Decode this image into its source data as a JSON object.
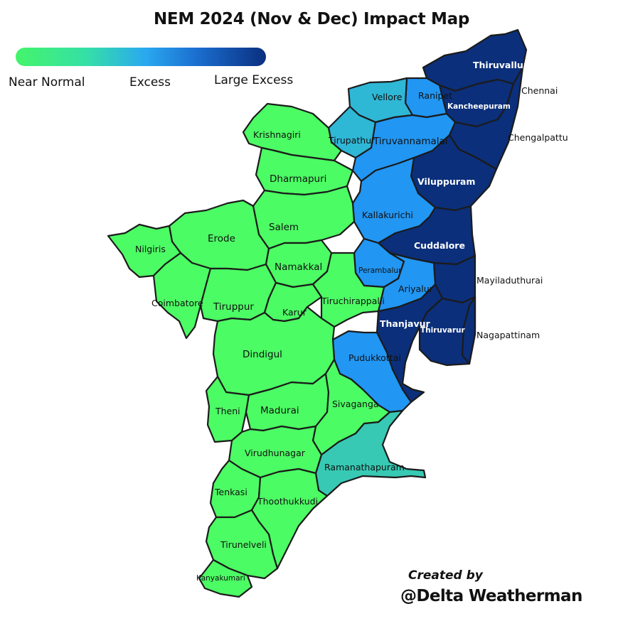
{
  "title": "NEM 2024 (Nov & Dec) Impact Map",
  "legend": {
    "items": [
      {
        "label": "Near Normal",
        "color": "#4cfc64"
      },
      {
        "label": "Excess",
        "color": "#2aa8f0"
      },
      {
        "label": "Large Excess",
        "color": "#0a2f80"
      }
    ]
  },
  "colors": {
    "near_normal": "#4cfc64",
    "near_excess_light": "#2fbfcf",
    "teal": "#37c9b4",
    "excess": "#2196f3",
    "large_excess": "#0b2f7a"
  },
  "districts": {
    "thiruvallur": {
      "name": "Thiruvallur",
      "category": "Large Excess"
    },
    "chennai": {
      "name": "Chennai",
      "category": "Large Excess"
    },
    "kancheepuram": {
      "name": "Kancheepuram",
      "category": "Large Excess"
    },
    "chengalpattu": {
      "name": "Chengalpattu",
      "category": "Large Excess"
    },
    "ranipet": {
      "name": "Ranipet",
      "category": "Excess"
    },
    "vellore": {
      "name": "Vellore",
      "category": "Excess"
    },
    "tirupathur": {
      "name": "Tirupathur",
      "category": "Excess"
    },
    "tiruvannamalai": {
      "name": "Tiruvannamalai",
      "category": "Excess"
    },
    "viluppuram": {
      "name": "Viluppuram",
      "category": "Large Excess"
    },
    "kallakurichi": {
      "name": "Kallakurichi",
      "category": "Excess"
    },
    "cuddalore": {
      "name": "Cuddalore",
      "category": "Large Excess"
    },
    "perambalur": {
      "name": "Perambalur",
      "category": "Excess"
    },
    "ariyalur": {
      "name": "Ariyalur",
      "category": "Excess"
    },
    "mayiladuthurai": {
      "name": "Mayiladuthurai",
      "category": "Large Excess"
    },
    "thanjavur": {
      "name": "Thanjavur",
      "category": "Large Excess"
    },
    "thiruvarur": {
      "name": "Thiruvarur",
      "category": "Large Excess"
    },
    "nagapattinam": {
      "name": "Nagapattinam",
      "category": "Large Excess"
    },
    "pudukkottai": {
      "name": "Pudukkottai",
      "category": "Excess"
    },
    "ramanathapuram": {
      "name": "Ramanathapuram",
      "category": "Near Normal"
    },
    "krishnagiri": {
      "name": "Krishnagiri",
      "category": "Near Normal"
    },
    "dharmapuri": {
      "name": "Dharmapuri",
      "category": "Near Normal"
    },
    "salem": {
      "name": "Salem",
      "category": "Near Normal"
    },
    "erode": {
      "name": "Erode",
      "category": "Near Normal"
    },
    "nilgiris": {
      "name": "Nilgiris",
      "category": "Near Normal"
    },
    "namakkal": {
      "name": "Namakkal",
      "category": "Near Normal"
    },
    "coimbatore": {
      "name": "Coimbatore",
      "category": "Near Normal"
    },
    "tiruppur": {
      "name": "Tiruppur",
      "category": "Near Normal"
    },
    "karur": {
      "name": "Karur",
      "category": "Near Normal"
    },
    "tiruchirappalli": {
      "name": "Tiruchirappalli",
      "category": "Near Normal"
    },
    "dindigul": {
      "name": "Dindigul",
      "category": "Near Normal"
    },
    "theni": {
      "name": "Theni",
      "category": "Near Normal"
    },
    "madurai": {
      "name": "Madurai",
      "category": "Near Normal"
    },
    "sivaganga": {
      "name": "Sivaganga",
      "category": "Near Normal"
    },
    "virudhunagar": {
      "name": "Virudhunagar",
      "category": "Near Normal"
    },
    "tenkasi": {
      "name": "Tenkasi",
      "category": "Near Normal"
    },
    "thoothukkudi": {
      "name": "Thoothukkudi",
      "category": "Near Normal"
    },
    "tirunelveli": {
      "name": "Tirunelveli",
      "category": "Near Normal"
    },
    "kanyakumari": {
      "name": "Kanyakumari",
      "category": "Near Normal"
    }
  },
  "credit": {
    "line1": "Created by",
    "line2": "@Delta Weatherman"
  }
}
